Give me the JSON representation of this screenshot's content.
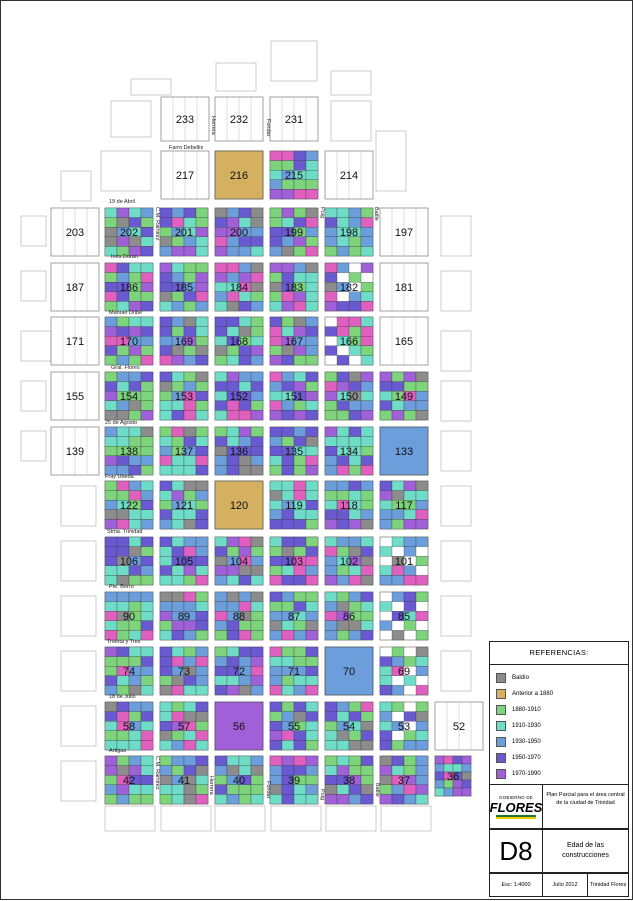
{
  "colors": {
    "baldio": "#8c8c8c",
    "anterior_1880": "#d4b060",
    "c1880_1910": "#7ed47c",
    "c1910_1930": "#6fdcc8",
    "c1930_1950": "#6c9edc",
    "c1950_1970": "#6a5ad2",
    "c1970_1990": "#a060d8",
    "c1990_2012": "#e060c0"
  },
  "blocks": [
    {
      "n": "233"
    },
    {
      "n": "232"
    },
    {
      "n": "231"
    },
    {
      "n": "217"
    },
    {
      "n": "216"
    },
    {
      "n": "215"
    },
    {
      "n": "214"
    },
    {
      "n": "203"
    },
    {
      "n": "202"
    },
    {
      "n": "201"
    },
    {
      "n": "200"
    },
    {
      "n": "199"
    },
    {
      "n": "198"
    },
    {
      "n": "197"
    },
    {
      "n": "187"
    },
    {
      "n": "186"
    },
    {
      "n": "185"
    },
    {
      "n": "184"
    },
    {
      "n": "183"
    },
    {
      "n": "182"
    },
    {
      "n": "181"
    },
    {
      "n": "171"
    },
    {
      "n": "170"
    },
    {
      "n": "169"
    },
    {
      "n": "168"
    },
    {
      "n": "167"
    },
    {
      "n": "166"
    },
    {
      "n": "165"
    },
    {
      "n": "155"
    },
    {
      "n": "154"
    },
    {
      "n": "153"
    },
    {
      "n": "152"
    },
    {
      "n": "151"
    },
    {
      "n": "150"
    },
    {
      "n": "149"
    },
    {
      "n": "139"
    },
    {
      "n": "138"
    },
    {
      "n": "137"
    },
    {
      "n": "136"
    },
    {
      "n": "135"
    },
    {
      "n": "134"
    },
    {
      "n": "133"
    },
    {
      "n": "122"
    },
    {
      "n": "121"
    },
    {
      "n": "120"
    },
    {
      "n": "119"
    },
    {
      "n": "118"
    },
    {
      "n": "117"
    },
    {
      "n": "106"
    },
    {
      "n": "105"
    },
    {
      "n": "104"
    },
    {
      "n": "103"
    },
    {
      "n": "102"
    },
    {
      "n": "101"
    },
    {
      "n": "90"
    },
    {
      "n": "89"
    },
    {
      "n": "88"
    },
    {
      "n": "87"
    },
    {
      "n": "86"
    },
    {
      "n": "85"
    },
    {
      "n": "74"
    },
    {
      "n": "73"
    },
    {
      "n": "72"
    },
    {
      "n": "71"
    },
    {
      "n": "70"
    },
    {
      "n": "69"
    },
    {
      "n": "58"
    },
    {
      "n": "57"
    },
    {
      "n": "56"
    },
    {
      "n": "55"
    },
    {
      "n": "54"
    },
    {
      "n": "53"
    },
    {
      "n": "52"
    },
    {
      "n": "42"
    },
    {
      "n": "41"
    },
    {
      "n": "40"
    },
    {
      "n": "39"
    },
    {
      "n": "38"
    },
    {
      "n": "37"
    },
    {
      "n": "36"
    }
  ],
  "streets": {
    "farro_debellis": "Farro Debellis",
    "diecinueve_abril": "19 de Abril",
    "ines_duran": "Inés Duran",
    "manuel_oribe": "Manuel Oribe",
    "gral_flores": "Gral. Flores",
    "veinticinco_agosto": "25 de Agosto",
    "fray_ubeda": "Fray Ubeda",
    "stma_trinidad": "Stma. Trinidad",
    "pte_berro": "Pte. Berro",
    "treinta_tres": "Treinta y Tres",
    "dieciocho_julio": "18 de Julio",
    "artigas": "Artigas",
    "herrera": "Herrera",
    "fondar": "Fondar",
    "cm_ramirez": "C.M. Ramirez",
    "puig": "Puig",
    "batlle": "Batlle"
  },
  "legend": {
    "title": "REFERENCIAS:",
    "items": [
      {
        "label": "Baldío",
        "color": "#8c8c8c"
      },
      {
        "label": "Anterior a 1880",
        "color": "#d4b060"
      },
      {
        "label": "1880-1910",
        "color": "#7ed47c"
      },
      {
        "label": "1910-1930",
        "color": "#6fdcc8"
      },
      {
        "label": "1930-1950",
        "color": "#6c9edc"
      },
      {
        "label": "1950-1970",
        "color": "#6a5ad2"
      },
      {
        "label": "1970-1990",
        "color": "#a060d8"
      },
      {
        "label": "1990-2012",
        "color": "#e060c0"
      }
    ]
  },
  "titleblock": {
    "logo_top": "GOBIERNO DE",
    "logo_main": "FLORES",
    "plan_text": "Plan Parcial para el área central de la ciudad de Trinidad",
    "sheet_code": "D8",
    "sheet_title": "Edad de las construcciones",
    "scale": "Esc: 1:4000",
    "date": "Julio 2012",
    "place": "Trinidad Flores"
  }
}
